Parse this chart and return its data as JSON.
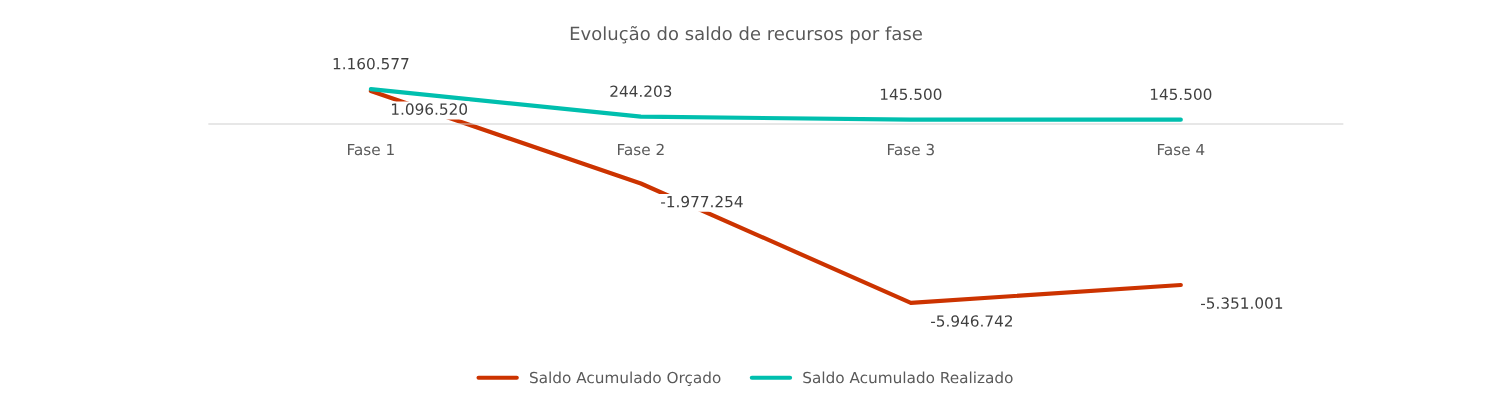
{
  "chart_data": {
    "type": "line",
    "title": "Evolução do saldo de recursos por fase",
    "categories": [
      "Fase 1",
      "Fase 2",
      "Fase 3",
      "Fase 4"
    ],
    "series": [
      {
        "name": "Saldo Acumulado Orçado",
        "color": "#cc3300",
        "values": [
          1096520,
          -1977254,
          -5946742,
          -5351001
        ],
        "value_labels": [
          "1.096.520",
          "-1.977.254",
          "-5.946.742",
          "-5.351.001"
        ]
      },
      {
        "name": "Saldo Acumulado Realizado",
        "color": "#00bfae",
        "values": [
          1160577,
          244203,
          145500,
          145500
        ],
        "value_labels": [
          "1.160.577",
          "244.203",
          "145.500",
          "145.500"
        ]
      }
    ],
    "legend": "bottom",
    "grid": false,
    "marker": "none",
    "line_style": "solid"
  }
}
